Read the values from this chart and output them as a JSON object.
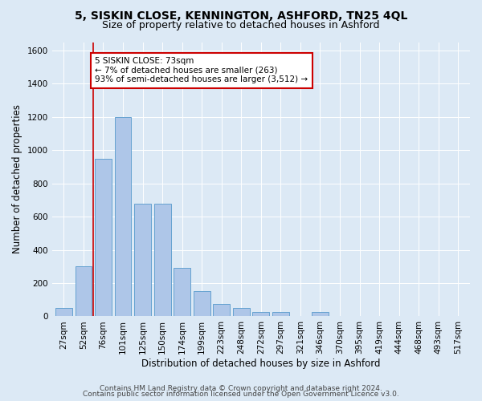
{
  "title": "5, SISKIN CLOSE, KENNINGTON, ASHFORD, TN25 4QL",
  "subtitle": "Size of property relative to detached houses in Ashford",
  "xlabel": "Distribution of detached houses by size in Ashford",
  "ylabel": "Number of detached properties",
  "categories": [
    "27sqm",
    "52sqm",
    "76sqm",
    "101sqm",
    "125sqm",
    "150sqm",
    "174sqm",
    "199sqm",
    "223sqm",
    "248sqm",
    "272sqm",
    "297sqm",
    "321sqm",
    "346sqm",
    "370sqm",
    "395sqm",
    "419sqm",
    "444sqm",
    "468sqm",
    "493sqm",
    "517sqm"
  ],
  "bar_heights": [
    50,
    300,
    950,
    1200,
    680,
    680,
    290,
    150,
    75,
    50,
    25,
    25,
    0,
    25,
    0,
    0,
    0,
    0,
    0,
    0,
    0
  ],
  "bar_color": "#aec6e8",
  "bar_edge_color": "#5599cc",
  "property_line_x": 1.5,
  "property_line_color": "#cc0000",
  "annotation_text": "5 SISKIN CLOSE: 73sqm\n← 7% of detached houses are smaller (263)\n93% of semi-detached houses are larger (3,512) →",
  "annotation_box_color": "#ffffff",
  "annotation_box_edge": "#cc0000",
  "ylim": [
    0,
    1650
  ],
  "yticks": [
    0,
    200,
    400,
    600,
    800,
    1000,
    1200,
    1400,
    1600
  ],
  "background_color": "#dce9f5",
  "plot_bg_color": "#dce9f5",
  "footer_line1": "Contains HM Land Registry data © Crown copyright and database right 2024.",
  "footer_line2": "Contains public sector information licensed under the Open Government Licence v3.0.",
  "title_fontsize": 10,
  "subtitle_fontsize": 9,
  "xlabel_fontsize": 8.5,
  "ylabel_fontsize": 8.5,
  "tick_fontsize": 7.5,
  "footer_fontsize": 6.5,
  "annot_fontsize": 7.5
}
